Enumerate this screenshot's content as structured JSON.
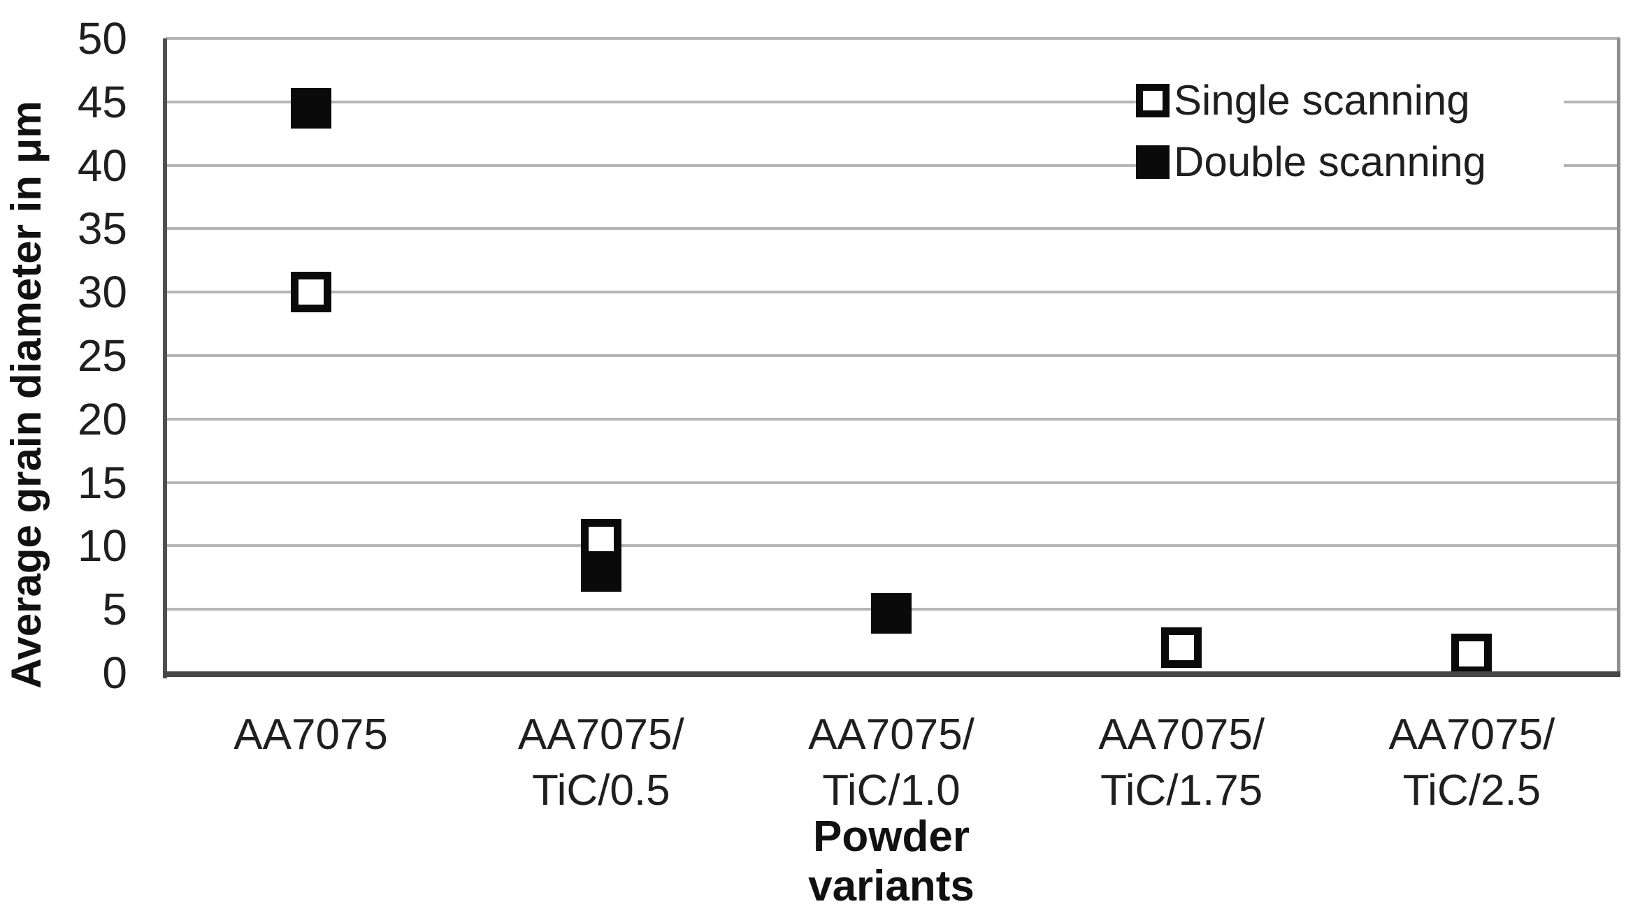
{
  "chart_data": {
    "type": "scatter",
    "title": "",
    "xlabel": "Powder variants",
    "ylabel": "Average grain diameter in μm",
    "ylim": [
      0,
      50
    ],
    "yticks": [
      0,
      5,
      10,
      15,
      20,
      25,
      30,
      35,
      40,
      45,
      50
    ],
    "grid": "horizontal",
    "legend_position": "top-right",
    "categories": [
      "AA7075",
      "AA7075/TiC/0.5",
      "AA7075/TiC/1.0",
      "AA7075/TiC/1.75",
      "AA7075/TiC/2.5"
    ],
    "category_labels": [
      [
        "AA7075"
      ],
      [
        "AA7075/",
        "TiC/0.5"
      ],
      [
        "AA7075/",
        "TiC/1.0"
      ],
      [
        "AA7075/",
        "TiC/1.75"
      ],
      [
        "AA7075/",
        "TiC/2.5"
      ]
    ],
    "series": [
      {
        "name": "Single scanning",
        "marker": "open-square",
        "values": [
          30,
          10.5,
          null,
          2,
          1.5
        ]
      },
      {
        "name": "Double scanning",
        "marker": "filled-square",
        "values": [
          44.5,
          8,
          4.7,
          null,
          null
        ]
      }
    ],
    "colors": {
      "marker": "#0a0a0a",
      "text": "#1f1f1f",
      "gridline": "#b5b5b5",
      "axis": "#4f4f4f",
      "background": "#ffffff"
    }
  }
}
